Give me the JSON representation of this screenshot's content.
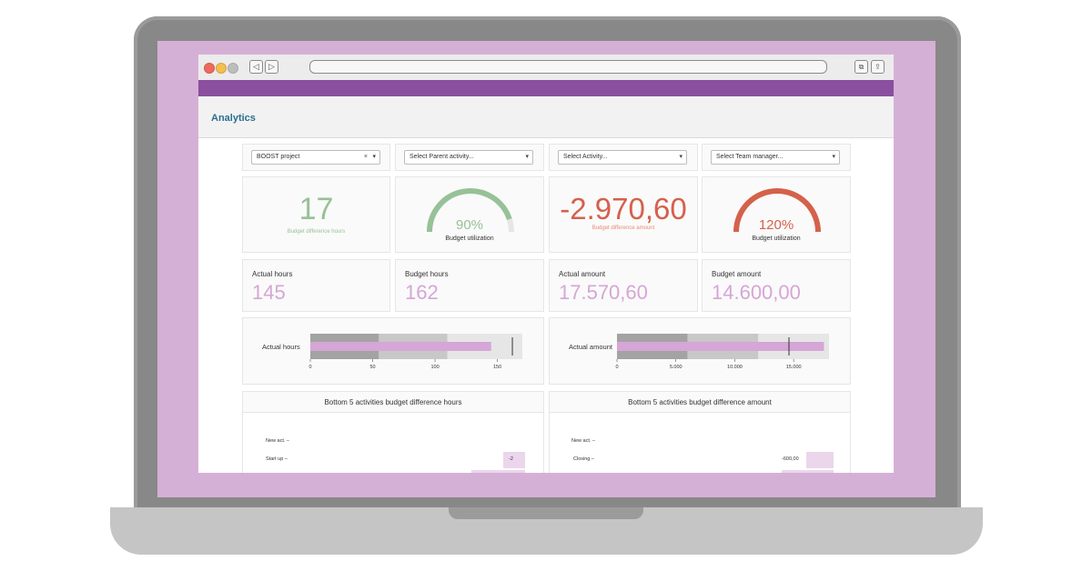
{
  "colors": {
    "accent": "#8a4f9e",
    "positive": "#97c197",
    "negative": "#d5614b",
    "kpi": "#d5a6d6"
  },
  "browser": {
    "back_icon": "chevron-left-icon",
    "forward_icon": "chevron-right-icon",
    "back_glyph": "◁",
    "forward_glyph": "▷",
    "tabs_glyph": "⧉",
    "share_glyph": "⇪"
  },
  "header": {
    "title": "Analytics"
  },
  "filters": [
    {
      "value": "BOOST project",
      "clear": "×",
      "caret": "▾"
    },
    {
      "value": "Select Parent activity...",
      "caret": "▾"
    },
    {
      "value": "Select Activity...",
      "caret": "▾"
    },
    {
      "value": "Select Team manager...",
      "caret": "▾"
    }
  ],
  "indicators": {
    "hours_diff": {
      "value": "17",
      "label": "Budget difference hours"
    },
    "hours_util": {
      "value": "90%",
      "label": "Budget utilization",
      "fraction": 0.9
    },
    "amount_diff": {
      "value": "-2.970,60",
      "label": "Budget difference amount"
    },
    "amount_util": {
      "value": "120%",
      "label": "Budget utilization",
      "fraction": 1.0
    }
  },
  "kpis": [
    {
      "label": "Actual hours",
      "value": "145"
    },
    {
      "label": "Budget hours",
      "value": "162"
    },
    {
      "label": "Actual amount",
      "value": "17.570,60"
    },
    {
      "label": "Budget amount",
      "value": "14.600,00"
    }
  ],
  "bullets": [
    {
      "label": "Actual hours",
      "ticks": [
        "0",
        "50",
        "100",
        "150"
      ]
    },
    {
      "label": "Actual amount",
      "ticks": [
        "0",
        "5.000",
        "10.000",
        "15.000"
      ]
    }
  ],
  "bottom_charts": [
    {
      "title": "Bottom 5 activities budget difference hours",
      "rows": [
        {
          "label": "New act. –",
          "value": ""
        },
        {
          "label": "Start up –",
          "value": "-2"
        }
      ]
    },
    {
      "title": "Bottom 5 activities budget difference amount",
      "rows": [
        {
          "label": "New act. –",
          "value": ""
        },
        {
          "label": "Closing –",
          "value": "-600,00"
        }
      ]
    }
  ],
  "chart_data": [
    {
      "type": "bar",
      "title": "Actual hours",
      "orientation": "horizontal",
      "actual": 145,
      "target": 162,
      "ranges": [
        55,
        110,
        170
      ],
      "xlim": [
        0,
        170
      ]
    },
    {
      "type": "bar",
      "title": "Actual amount",
      "orientation": "horizontal",
      "actual": 17570.6,
      "target": 14600,
      "ranges": [
        6000,
        12000,
        18000
      ],
      "xlim": [
        0,
        18000
      ]
    }
  ]
}
